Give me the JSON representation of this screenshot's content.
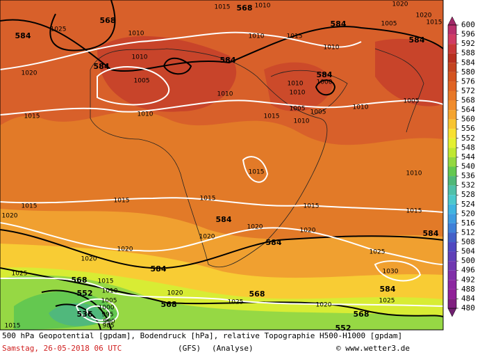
{
  "map": {
    "contour_labels": [
      "1015",
      "568",
      "1010",
      "1020",
      "1020",
      "1025",
      "568",
      "584",
      "1010",
      "1010",
      "1015",
      "584",
      "1005",
      "1015",
      "584",
      "1010",
      "1010",
      "584",
      "584",
      "1020",
      "1005",
      "584",
      "1010",
      "1000",
      "1010",
      "1010",
      "1005",
      "1005",
      "1015",
      "1010",
      "1010",
      "1005",
      "1015",
      "1010",
      "1015",
      "1010",
      "1015",
      "1015",
      "1015",
      "1015",
      "1015",
      "1020",
      "584",
      "1020",
      "1020",
      "584",
      "1020",
      "584",
      "1020",
      "1020",
      "1025",
      "584",
      "1030",
      "1025",
      "568",
      "1015",
      "584",
      "552",
      "1010",
      "1020",
      "568",
      "1025",
      "1005",
      "568",
      "1025",
      "1000",
      "536",
      "995",
      "1020",
      "568",
      "990",
      "985",
      "1015",
      "552"
    ]
  },
  "colorbar": {
    "ticks": [
      600,
      596,
      592,
      588,
      584,
      580,
      576,
      572,
      568,
      564,
      560,
      556,
      552,
      548,
      544,
      540,
      536,
      532,
      528,
      524,
      520,
      516,
      512,
      508,
      504,
      500,
      496,
      492,
      488,
      484,
      480
    ],
    "colors": [
      "#b8306c",
      "#d03c64",
      "#c83838",
      "#b83020",
      "#c44420",
      "#d45420",
      "#e06424",
      "#e87828",
      "#f08c2c",
      "#f4a430",
      "#f8c430",
      "#f8e030",
      "#e4f030",
      "#c0e830",
      "#94d840",
      "#64c850",
      "#50b878",
      "#50c0a8",
      "#4cc8cc",
      "#40b4e0",
      "#409ce0",
      "#4080d8",
      "#4460c8",
      "#5048c0",
      "#6040b8",
      "#7038b0",
      "#8030a8",
      "#8c28a0",
      "#902098",
      "#802080"
    ],
    "top_arrow_color": "#a02868",
    "bottom_arrow_color": "#702070"
  },
  "footer": {
    "line1": "500 hPa Geopotential [gpdam], Bodendruck [hPa], relative Topographie H500-H1000 [gpdam]",
    "date": "Samstag, 26-05-2018  06 UTC",
    "model": "(GFS)",
    "run": "(Analyse)",
    "credit": "© www.wetter3.de"
  }
}
